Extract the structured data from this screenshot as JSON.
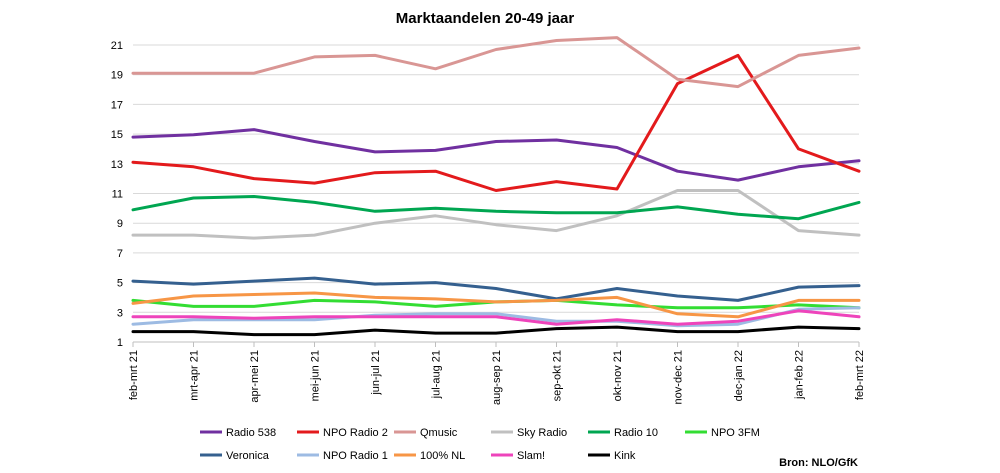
{
  "chart_data": {
    "type": "line",
    "title": "Marktaandelen 20-49 jaar",
    "source": "Bron: NLO/GfK",
    "xlabel": "",
    "ylabel": "",
    "ylim": [
      1,
      21
    ],
    "yticks": [
      1,
      3,
      5,
      7,
      9,
      11,
      13,
      15,
      17,
      19,
      21
    ],
    "grid": true,
    "legend_position": "bottom",
    "categories": [
      "feb-mrt 21",
      "mrt-apr 21",
      "apr-mei 21",
      "mei-jun 21",
      "jun-jul 21",
      "jul-aug 21",
      "aug-sep 21",
      "sep-okt 21",
      "okt-nov 21",
      "nov-dec 21",
      "dec-jan 22",
      "jan-feb 22",
      "feb-mrt 22"
    ],
    "series": [
      {
        "name": "Radio 538",
        "color": "#7030a0",
        "values": [
          14.8,
          14.95,
          15.3,
          14.5,
          13.8,
          13.9,
          14.5,
          14.6,
          14.1,
          12.5,
          11.9,
          12.8,
          13.2
        ]
      },
      {
        "name": "NPO Radio 2",
        "color": "#e31a1c",
        "values": [
          13.1,
          12.8,
          12.0,
          11.7,
          12.4,
          12.5,
          11.2,
          11.8,
          11.3,
          18.4,
          20.3,
          14.0,
          12.5
        ]
      },
      {
        "name": "Qmusic",
        "color": "#d99694",
        "values": [
          19.1,
          19.1,
          19.1,
          20.2,
          20.3,
          19.4,
          20.7,
          21.3,
          21.5,
          18.7,
          18.2,
          20.3,
          20.8
        ]
      },
      {
        "name": "Sky Radio",
        "color": "#c0c0c0",
        "values": [
          8.2,
          8.2,
          8.0,
          8.2,
          9.0,
          9.5,
          8.9,
          8.5,
          9.5,
          11.2,
          11.2,
          8.5,
          8.2
        ]
      },
      {
        "name": "Radio 10",
        "color": "#00a651",
        "values": [
          9.9,
          10.7,
          10.8,
          10.4,
          9.8,
          10.0,
          9.8,
          9.7,
          9.7,
          10.1,
          9.6,
          9.3,
          10.4
        ]
      },
      {
        "name": "NPO 3FM",
        "color": "#33dd33",
        "values": [
          3.8,
          3.4,
          3.4,
          3.8,
          3.7,
          3.4,
          3.7,
          3.8,
          3.5,
          3.3,
          3.3,
          3.5,
          3.3
        ]
      },
      {
        "name": "Veronica",
        "color": "#35608f",
        "values": [
          5.1,
          4.9,
          5.1,
          5.3,
          4.9,
          5.0,
          4.6,
          3.9,
          4.6,
          4.1,
          3.8,
          4.7,
          4.8
        ]
      },
      {
        "name": "NPO Radio 1",
        "color": "#9dbbe3",
        "values": [
          2.2,
          2.5,
          2.5,
          2.5,
          2.8,
          2.9,
          2.9,
          2.4,
          2.4,
          2.1,
          2.2,
          3.2,
          3.3
        ]
      },
      {
        "name": "100% NL",
        "color": "#f79646",
        "values": [
          3.6,
          4.1,
          4.2,
          4.3,
          4.0,
          3.9,
          3.7,
          3.8,
          4.0,
          2.9,
          2.7,
          3.8,
          3.8
        ]
      },
      {
        "name": "Slam!",
        "color": "#ee44bb",
        "values": [
          2.7,
          2.7,
          2.6,
          2.7,
          2.7,
          2.7,
          2.7,
          2.2,
          2.5,
          2.2,
          2.4,
          3.1,
          2.7
        ]
      },
      {
        "name": "Kink",
        "color": "#000000",
        "values": [
          1.7,
          1.7,
          1.5,
          1.5,
          1.8,
          1.6,
          1.6,
          1.9,
          2.0,
          1.7,
          1.7,
          2.0,
          1.9
        ]
      }
    ]
  }
}
